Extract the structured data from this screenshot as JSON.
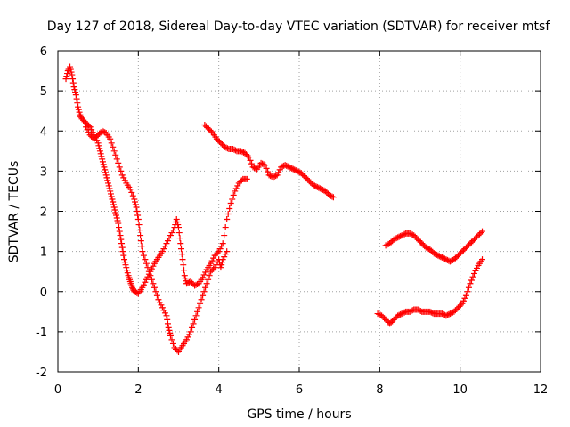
{
  "chart_data": {
    "type": "scatter",
    "title": "Day 127 of 2018, Sidereal Day-to-day VTEC variation (SDTVAR) for receiver mtsf",
    "xlabel": "GPS time / hours",
    "ylabel": "SDTVAR / TECUs",
    "xlim": [
      0,
      12
    ],
    "ylim": [
      -2,
      6
    ],
    "xticks": [
      "0",
      "2",
      "4",
      "6",
      "8",
      "10",
      "12"
    ],
    "yticks": [
      "-2",
      "-1",
      "0",
      "1",
      "2",
      "3",
      "4",
      "5",
      "6"
    ],
    "grid": true,
    "marker": "+",
    "color": "#ff0000",
    "series": [
      {
        "points": [
          [
            0.2,
            5.3
          ],
          [
            0.25,
            5.5
          ],
          [
            0.3,
            5.6
          ],
          [
            0.35,
            5.4
          ],
          [
            0.4,
            5.1
          ],
          [
            0.45,
            4.9
          ],
          [
            0.5,
            4.6
          ],
          [
            0.55,
            4.4
          ],
          [
            0.6,
            4.3
          ],
          [
            0.7,
            4.2
          ],
          [
            0.8,
            4.1
          ],
          [
            0.9,
            3.9
          ],
          [
            1.0,
            3.7
          ],
          [
            1.05,
            3.5
          ],
          [
            1.1,
            3.3
          ],
          [
            1.15,
            3.1
          ],
          [
            1.2,
            2.9
          ],
          [
            1.25,
            2.7
          ],
          [
            1.3,
            2.5
          ],
          [
            1.35,
            2.3
          ],
          [
            1.4,
            2.1
          ],
          [
            1.45,
            1.9
          ],
          [
            1.5,
            1.7
          ],
          [
            1.55,
            1.4
          ],
          [
            1.6,
            1.1
          ],
          [
            1.65,
            0.8
          ],
          [
            1.7,
            0.6
          ],
          [
            1.75,
            0.4
          ],
          [
            1.8,
            0.25
          ],
          [
            1.85,
            0.1
          ],
          [
            1.9,
            0.0
          ],
          [
            2.0,
            -0.05
          ],
          [
            2.1,
            0.1
          ],
          [
            2.2,
            0.3
          ],
          [
            2.3,
            0.5
          ],
          [
            2.4,
            0.7
          ],
          [
            2.5,
            0.85
          ],
          [
            2.6,
            1.0
          ],
          [
            2.7,
            1.2
          ],
          [
            2.8,
            1.4
          ],
          [
            2.9,
            1.6
          ],
          [
            2.95,
            1.8
          ],
          [
            3.0,
            1.6
          ],
          [
            3.05,
            1.2
          ],
          [
            3.1,
            0.8
          ],
          [
            3.15,
            0.4
          ],
          [
            3.2,
            0.2
          ],
          [
            3.3,
            0.25
          ],
          [
            3.4,
            0.15
          ],
          [
            3.5,
            0.2
          ],
          [
            3.6,
            0.35
          ],
          [
            3.7,
            0.55
          ],
          [
            3.8,
            0.7
          ],
          [
            3.9,
            0.9
          ],
          [
            4.0,
            1.0
          ],
          [
            4.1,
            1.2
          ],
          [
            4.2,
            1.8
          ],
          [
            4.3,
            2.2
          ],
          [
            4.4,
            2.5
          ],
          [
            4.5,
            2.7
          ],
          [
            4.6,
            2.8
          ],
          [
            4.7,
            2.8
          ]
        ]
      },
      {
        "points": [
          [
            0.7,
            4.1
          ],
          [
            0.8,
            3.9
          ],
          [
            0.9,
            3.8
          ],
          [
            1.0,
            3.9
          ],
          [
            1.1,
            4.0
          ],
          [
            1.2,
            3.95
          ],
          [
            1.3,
            3.8
          ],
          [
            1.4,
            3.5
          ],
          [
            1.5,
            3.2
          ],
          [
            1.6,
            2.9
          ],
          [
            1.7,
            2.7
          ],
          [
            1.8,
            2.55
          ],
          [
            1.9,
            2.3
          ],
          [
            1.95,
            2.1
          ],
          [
            2.0,
            1.8
          ],
          [
            2.05,
            1.4
          ],
          [
            2.1,
            1.0
          ],
          [
            2.2,
            0.7
          ],
          [
            2.3,
            0.4
          ],
          [
            2.4,
            0.1
          ],
          [
            2.5,
            -0.2
          ],
          [
            2.6,
            -0.4
          ],
          [
            2.7,
            -0.6
          ],
          [
            2.75,
            -0.9
          ],
          [
            2.8,
            -1.1
          ],
          [
            2.9,
            -1.4
          ],
          [
            3.0,
            -1.5
          ],
          [
            3.1,
            -1.35
          ],
          [
            3.2,
            -1.2
          ],
          [
            3.3,
            -1.0
          ],
          [
            3.4,
            -0.7
          ],
          [
            3.5,
            -0.4
          ],
          [
            3.6,
            -0.1
          ],
          [
            3.7,
            0.2
          ],
          [
            3.8,
            0.5
          ],
          [
            3.9,
            0.6
          ],
          [
            4.0,
            0.8
          ],
          [
            4.05,
            0.6
          ],
          [
            4.1,
            0.8
          ],
          [
            4.2,
            1.0
          ]
        ]
      },
      {
        "points": [
          [
            3.65,
            4.15
          ],
          [
            3.75,
            4.05
          ],
          [
            3.85,
            3.95
          ],
          [
            3.95,
            3.8
          ],
          [
            4.05,
            3.7
          ],
          [
            4.15,
            3.6
          ],
          [
            4.25,
            3.55
          ],
          [
            4.35,
            3.55
          ],
          [
            4.45,
            3.5
          ],
          [
            4.55,
            3.5
          ],
          [
            4.65,
            3.45
          ],
          [
            4.75,
            3.35
          ],
          [
            4.85,
            3.1
          ],
          [
            4.95,
            3.05
          ],
          [
            5.05,
            3.2
          ],
          [
            5.15,
            3.15
          ],
          [
            5.25,
            2.9
          ],
          [
            5.35,
            2.85
          ],
          [
            5.45,
            2.9
          ],
          [
            5.55,
            3.1
          ],
          [
            5.65,
            3.15
          ],
          [
            5.75,
            3.1
          ],
          [
            5.85,
            3.05
          ],
          [
            5.95,
            3.0
          ],
          [
            6.05,
            2.95
          ],
          [
            6.15,
            2.85
          ],
          [
            6.25,
            2.75
          ],
          [
            6.35,
            2.65
          ],
          [
            6.45,
            2.6
          ],
          [
            6.55,
            2.55
          ],
          [
            6.65,
            2.5
          ],
          [
            6.75,
            2.4
          ],
          [
            6.85,
            2.35
          ]
        ]
      },
      {
        "points": [
          [
            7.95,
            -0.55
          ],
          [
            8.05,
            -0.6
          ],
          [
            8.15,
            -0.7
          ],
          [
            8.25,
            -0.8
          ],
          [
            8.35,
            -0.7
          ],
          [
            8.45,
            -0.6
          ],
          [
            8.55,
            -0.55
          ],
          [
            8.65,
            -0.5
          ],
          [
            8.75,
            -0.5
          ],
          [
            8.85,
            -0.45
          ],
          [
            8.95,
            -0.45
          ],
          [
            9.05,
            -0.5
          ],
          [
            9.15,
            -0.5
          ],
          [
            9.25,
            -0.5
          ],
          [
            9.35,
            -0.55
          ],
          [
            9.45,
            -0.55
          ],
          [
            9.55,
            -0.55
          ],
          [
            9.65,
            -0.6
          ],
          [
            9.75,
            -0.55
          ],
          [
            9.85,
            -0.5
          ],
          [
            9.95,
            -0.4
          ],
          [
            10.05,
            -0.3
          ],
          [
            10.15,
            -0.1
          ],
          [
            10.25,
            0.2
          ],
          [
            10.35,
            0.45
          ],
          [
            10.45,
            0.65
          ],
          [
            10.55,
            0.8
          ]
        ]
      },
      {
        "points": [
          [
            8.15,
            1.15
          ],
          [
            8.25,
            1.2
          ],
          [
            8.35,
            1.3
          ],
          [
            8.45,
            1.35
          ],
          [
            8.55,
            1.4
          ],
          [
            8.65,
            1.45
          ],
          [
            8.75,
            1.45
          ],
          [
            8.85,
            1.4
          ],
          [
            8.95,
            1.3
          ],
          [
            9.05,
            1.2
          ],
          [
            9.15,
            1.1
          ],
          [
            9.25,
            1.05
          ],
          [
            9.35,
            0.95
          ],
          [
            9.45,
            0.9
          ],
          [
            9.55,
            0.85
          ],
          [
            9.65,
            0.8
          ],
          [
            9.75,
            0.75
          ],
          [
            9.85,
            0.8
          ],
          [
            9.95,
            0.9
          ],
          [
            10.05,
            1.0
          ],
          [
            10.15,
            1.1
          ],
          [
            10.25,
            1.2
          ],
          [
            10.35,
            1.3
          ],
          [
            10.45,
            1.4
          ],
          [
            10.55,
            1.5
          ]
        ]
      }
    ]
  }
}
